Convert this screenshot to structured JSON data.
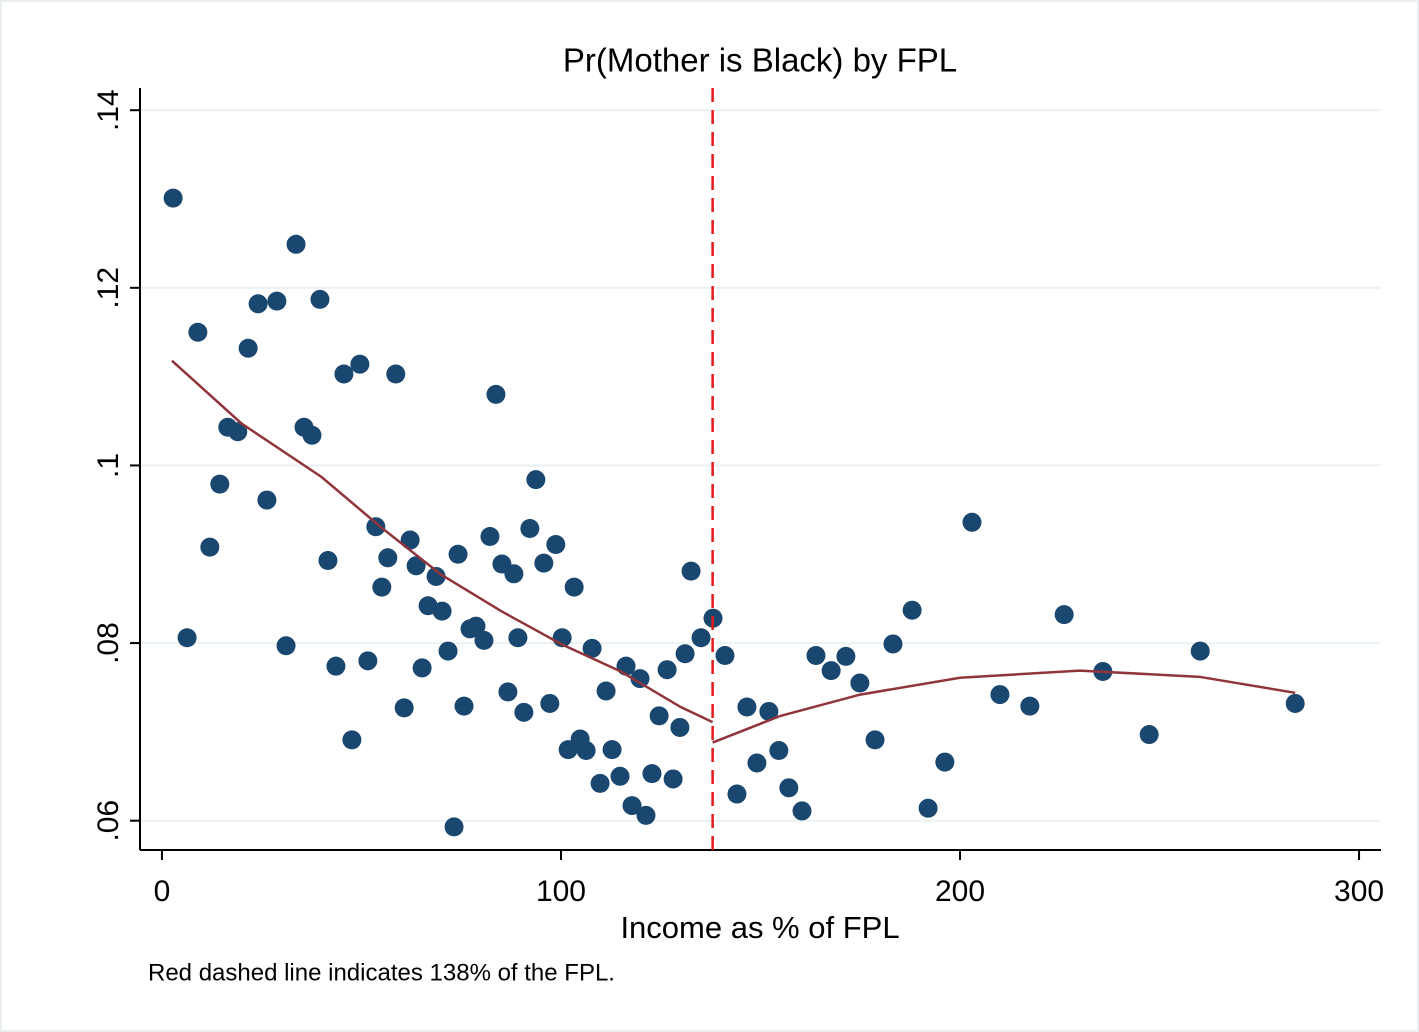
{
  "chart_data": {
    "type": "scatter",
    "title": "Pr(Mother is Black) by FPL",
    "x_label": "Income as % of FPL",
    "note": "Red dashed line indicates 138% of the FPL.",
    "xlim": [
      -5.5,
      305.5
    ],
    "ylim": [
      0.0567,
      0.1425
    ],
    "xticks": [
      0,
      100,
      200,
      300
    ],
    "yticks": [
      {
        "value": 0.06,
        "label": ".06"
      },
      {
        "value": 0.08,
        "label": ".08"
      },
      {
        "value": 0.1,
        "label": ".1"
      },
      {
        "value": 0.12,
        "label": ".12"
      },
      {
        "value": 0.14,
        "label": ".14"
      }
    ],
    "grid": true,
    "points": {
      "color": "#1a476f",
      "x": [
        2.8,
        6.3,
        9.0,
        12.0,
        14.5,
        16.5,
        19.0,
        21.6,
        24.1,
        26.3,
        28.8,
        31.1,
        33.6,
        35.6,
        37.6,
        39.6,
        41.6,
        43.6,
        45.6,
        47.6,
        49.6,
        51.6,
        53.6,
        55.1,
        56.6,
        58.6,
        60.7,
        62.2,
        63.7,
        65.2,
        66.7,
        68.7,
        70.2,
        71.7,
        73.2,
        74.2,
        75.7,
        77.2,
        78.7,
        80.7,
        82.2,
        83.7,
        85.2,
        86.7,
        88.2,
        89.2,
        90.7,
        92.2,
        93.7,
        95.7,
        97.2,
        98.7,
        100.3,
        101.8,
        103.3,
        104.8,
        106.3,
        107.8,
        109.8,
        111.3,
        112.8,
        114.8,
        116.3,
        117.8,
        119.8,
        121.3,
        122.8,
        124.6,
        126.6,
        128.1,
        129.8,
        131.1,
        132.6,
        135.1,
        138.1,
        141.1,
        144.1,
        146.6,
        149.1,
        152.1,
        154.6,
        157.1,
        160.4,
        163.9,
        167.7,
        171.4,
        174.9,
        178.7,
        183.2,
        188.0,
        192.0,
        196.2,
        203.0,
        210.0,
        217.5,
        226.1,
        235.8,
        247.4,
        260.2,
        284.0
      ],
      "values": [
        0.1301,
        0.0806,
        0.115,
        0.0908,
        0.0979,
        0.1043,
        0.1038,
        0.1132,
        0.1182,
        0.0961,
        0.1185,
        0.0797,
        0.1249,
        0.1043,
        0.1034,
        0.1187,
        0.0893,
        0.0774,
        0.1103,
        0.0691,
        0.1114,
        0.078,
        0.0931,
        0.0863,
        0.0896,
        0.1103,
        0.0727,
        0.0916,
        0.0887,
        0.0772,
        0.0842,
        0.0875,
        0.0836,
        0.0791,
        0.0593,
        0.09,
        0.0729,
        0.0816,
        0.0819,
        0.0803,
        0.092,
        0.108,
        0.0889,
        0.0745,
        0.0878,
        0.0806,
        0.0722,
        0.0929,
        0.0984,
        0.089,
        0.0732,
        0.0911,
        0.0806,
        0.068,
        0.0863,
        0.0692,
        0.0679,
        0.0794,
        0.0642,
        0.0746,
        0.068,
        0.065,
        0.0774,
        0.0617,
        0.076,
        0.0606,
        0.0653,
        0.0718,
        0.077,
        0.0647,
        0.0705,
        0.0788,
        0.0881,
        0.0806,
        0.0828,
        0.0786,
        0.063,
        0.0728,
        0.0665,
        0.0723,
        0.0679,
        0.0637,
        0.0611,
        0.0786,
        0.0769,
        0.0785,
        0.0755,
        0.0691,
        0.0799,
        0.0837,
        0.0614,
        0.0666,
        0.0936,
        0.0742,
        0.0729,
        0.0832,
        0.0768,
        0.0697,
        0.0791,
        0.0732
      ]
    },
    "fits": [
      {
        "color": "#90353b",
        "x": [
          2.5,
          20,
          40,
          55,
          70,
          85,
          100,
          115,
          130,
          138
        ],
        "values": [
          0.1118,
          0.1047,
          0.0987,
          0.093,
          0.0877,
          0.0836,
          0.0799,
          0.0768,
          0.0728,
          0.0711
        ]
      },
      {
        "color": "#90353b",
        "x": [
          138,
          155,
          175,
          200,
          230,
          260,
          284
        ],
        "values": [
          0.0688,
          0.0718,
          0.0742,
          0.0761,
          0.0769,
          0.0762,
          0.0744
        ]
      }
    ],
    "vline": 138,
    "vline_color": "#e41a1c"
  }
}
